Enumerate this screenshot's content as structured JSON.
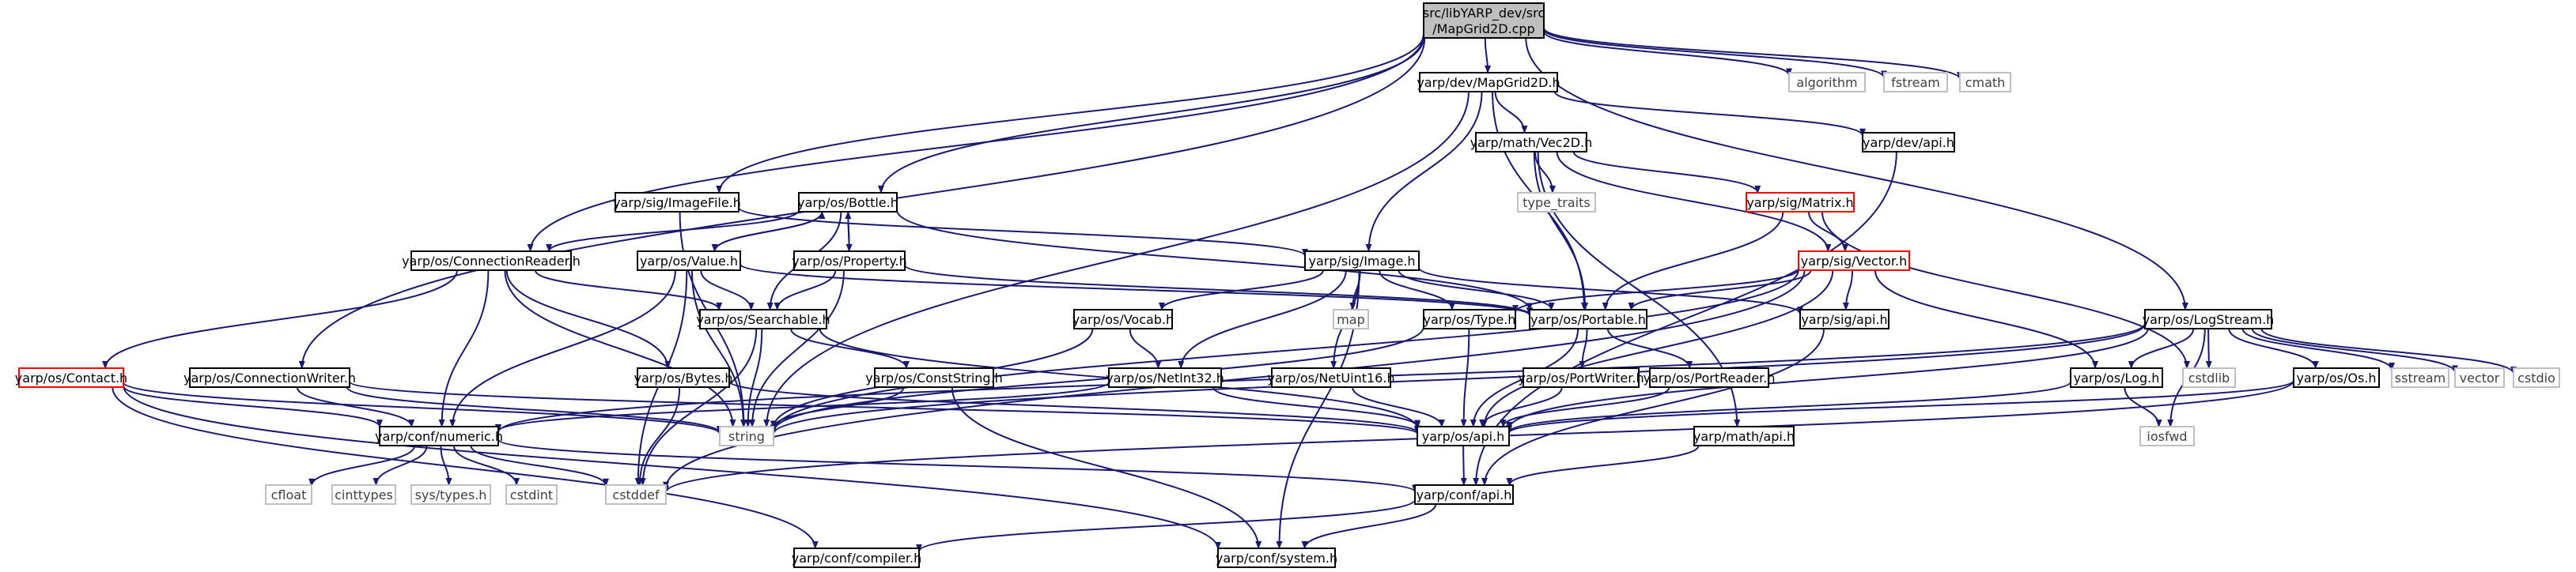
{
  "colors": {
    "edge": "#191970",
    "root_fill": "#bfbfbf",
    "root_border": "#000000",
    "normal_border": "#000000",
    "incomplete_border": "#ff0000",
    "system_border": "#bfbfbf",
    "system_text": "#404040",
    "normal_text": "#000000"
  },
  "nodes": [
    {
      "id": "root",
      "lines": [
        "src/libYARP_dev/src",
        "/MapGrid2D.cpp"
      ],
      "kind": "root"
    },
    {
      "id": "mapgrid2d",
      "lines": [
        "yarp/dev/MapGrid2D.h"
      ],
      "kind": "normal"
    },
    {
      "id": "algorithm",
      "lines": [
        "algorithm"
      ],
      "kind": "system"
    },
    {
      "id": "fstream",
      "lines": [
        "fstream"
      ],
      "kind": "system"
    },
    {
      "id": "cmath",
      "lines": [
        "cmath"
      ],
      "kind": "system"
    },
    {
      "id": "vec2d",
      "lines": [
        "yarp/math/Vec2D.h"
      ],
      "kind": "normal"
    },
    {
      "id": "devapi",
      "lines": [
        "yarp/dev/api.h"
      ],
      "kind": "normal"
    },
    {
      "id": "imagefile",
      "lines": [
        "yarp/sig/ImageFile.h"
      ],
      "kind": "normal"
    },
    {
      "id": "bottle",
      "lines": [
        "yarp/os/Bottle.h"
      ],
      "kind": "normal"
    },
    {
      "id": "type_traits",
      "lines": [
        "type_traits"
      ],
      "kind": "system"
    },
    {
      "id": "matrix",
      "lines": [
        "yarp/sig/Matrix.h"
      ],
      "kind": "incomplete"
    },
    {
      "id": "connreader",
      "lines": [
        "yarp/os/ConnectionReader.h"
      ],
      "kind": "normal"
    },
    {
      "id": "value",
      "lines": [
        "yarp/os/Value.h"
      ],
      "kind": "normal"
    },
    {
      "id": "property",
      "lines": [
        "yarp/os/Property.h"
      ],
      "kind": "normal"
    },
    {
      "id": "image",
      "lines": [
        "yarp/sig/Image.h"
      ],
      "kind": "normal"
    },
    {
      "id": "vector",
      "lines": [
        "yarp/sig/Vector.h"
      ],
      "kind": "incomplete"
    },
    {
      "id": "logstream",
      "lines": [
        "yarp/os/LogStream.h"
      ],
      "kind": "normal"
    },
    {
      "id": "searchable",
      "lines": [
        "yarp/os/Searchable.h"
      ],
      "kind": "normal"
    },
    {
      "id": "vocab",
      "lines": [
        "yarp/os/Vocab.h"
      ],
      "kind": "normal"
    },
    {
      "id": "map",
      "lines": [
        "map"
      ],
      "kind": "system"
    },
    {
      "id": "ostype",
      "lines": [
        "yarp/os/Type.h"
      ],
      "kind": "normal"
    },
    {
      "id": "portable",
      "lines": [
        "yarp/os/Portable.h"
      ],
      "kind": "normal"
    },
    {
      "id": "sigapi",
      "lines": [
        "yarp/sig/api.h"
      ],
      "kind": "normal"
    },
    {
      "id": "contact",
      "lines": [
        "yarp/os/Contact.h"
      ],
      "kind": "incomplete"
    },
    {
      "id": "connwriter",
      "lines": [
        "yarp/os/ConnectionWriter.h"
      ],
      "kind": "normal"
    },
    {
      "id": "bytes",
      "lines": [
        "yarp/os/Bytes.h"
      ],
      "kind": "normal"
    },
    {
      "id": "conststring",
      "lines": [
        "yarp/os/ConstString.h"
      ],
      "kind": "normal"
    },
    {
      "id": "netint32",
      "lines": [
        "yarp/os/NetInt32.h"
      ],
      "kind": "normal"
    },
    {
      "id": "netuint16",
      "lines": [
        "yarp/os/NetUint16.h"
      ],
      "kind": "normal"
    },
    {
      "id": "portwriter",
      "lines": [
        "yarp/os/PortWriter.h"
      ],
      "kind": "normal"
    },
    {
      "id": "portreader",
      "lines": [
        "yarp/os/PortReader.h"
      ],
      "kind": "normal"
    },
    {
      "id": "log",
      "lines": [
        "yarp/os/Log.h"
      ],
      "kind": "normal"
    },
    {
      "id": "cstdlib",
      "lines": [
        "cstdlib"
      ],
      "kind": "system"
    },
    {
      "id": "os",
      "lines": [
        "yarp/os/Os.h"
      ],
      "kind": "normal"
    },
    {
      "id": "sstream",
      "lines": [
        "sstream"
      ],
      "kind": "system"
    },
    {
      "id": "stdvector",
      "lines": [
        "vector"
      ],
      "kind": "system"
    },
    {
      "id": "cstdio",
      "lines": [
        "cstdio"
      ],
      "kind": "system"
    },
    {
      "id": "numeric",
      "lines": [
        "yarp/conf/numeric.h"
      ],
      "kind": "normal"
    },
    {
      "id": "string",
      "lines": [
        "string"
      ],
      "kind": "system"
    },
    {
      "id": "osapi",
      "lines": [
        "yarp/os/api.h"
      ],
      "kind": "normal"
    },
    {
      "id": "iosfwd",
      "lines": [
        "iosfwd"
      ],
      "kind": "system"
    },
    {
      "id": "mathapi",
      "lines": [
        "yarp/math/api.h"
      ],
      "kind": "normal"
    },
    {
      "id": "cfloat",
      "lines": [
        "cfloat"
      ],
      "kind": "system"
    },
    {
      "id": "cinttypes",
      "lines": [
        "cinttypes"
      ],
      "kind": "system"
    },
    {
      "id": "systypes",
      "lines": [
        "sys/types.h"
      ],
      "kind": "system"
    },
    {
      "id": "cstdint",
      "lines": [
        "cstdint"
      ],
      "kind": "system"
    },
    {
      "id": "cstddef",
      "lines": [
        "cstddef"
      ],
      "kind": "system"
    },
    {
      "id": "confapi",
      "lines": [
        "yarp/conf/api.h"
      ],
      "kind": "normal"
    },
    {
      "id": "compiler",
      "lines": [
        "yarp/conf/compiler.h"
      ],
      "kind": "normal"
    },
    {
      "id": "system",
      "lines": [
        "yarp/conf/system.h"
      ],
      "kind": "normal"
    }
  ],
  "edges": [
    [
      "root",
      "mapgrid2d"
    ],
    [
      "root",
      "algorithm"
    ],
    [
      "root",
      "fstream"
    ],
    [
      "root",
      "cmath"
    ],
    [
      "root",
      "imagefile"
    ],
    [
      "root",
      "bottle"
    ],
    [
      "root",
      "connreader"
    ],
    [
      "root",
      "connwriter"
    ],
    [
      "root",
      "logstream"
    ],
    [
      "mapgrid2d",
      "vec2d"
    ],
    [
      "mapgrid2d",
      "devapi"
    ],
    [
      "mapgrid2d",
      "image"
    ],
    [
      "mapgrid2d",
      "portable"
    ],
    [
      "mapgrid2d",
      "string"
    ],
    [
      "vec2d",
      "type_traits"
    ],
    [
      "vec2d",
      "matrix"
    ],
    [
      "vec2d",
      "vector"
    ],
    [
      "vec2d",
      "portable"
    ],
    [
      "vec2d",
      "mathapi"
    ],
    [
      "devapi",
      "confapi"
    ],
    [
      "imagefile",
      "image"
    ],
    [
      "imagefile",
      "string"
    ],
    [
      "bottle",
      "value"
    ],
    [
      "bottle",
      "property"
    ],
    [
      "bottle",
      "searchable"
    ],
    [
      "bottle",
      "portable"
    ],
    [
      "bottle",
      "connreader"
    ],
    [
      "matrix",
      "vector"
    ],
    [
      "matrix",
      "portable"
    ],
    [
      "matrix",
      "cstdlib"
    ],
    [
      "connreader",
      "contact"
    ],
    [
      "connreader",
      "bytes"
    ],
    [
      "connreader",
      "searchable"
    ],
    [
      "connreader",
      "numeric"
    ],
    [
      "connreader",
      "string"
    ],
    [
      "value",
      "searchable"
    ],
    [
      "value",
      "bottle"
    ],
    [
      "value",
      "string"
    ],
    [
      "value",
      "cstddef"
    ],
    [
      "value",
      "portable"
    ],
    [
      "value",
      "numeric"
    ],
    [
      "property",
      "searchable"
    ],
    [
      "property",
      "portable"
    ],
    [
      "property",
      "bottle"
    ],
    [
      "property",
      "string"
    ],
    [
      "image",
      "vocab"
    ],
    [
      "image",
      "map"
    ],
    [
      "image",
      "ostype"
    ],
    [
      "image",
      "portable"
    ],
    [
      "image",
      "sigapi"
    ],
    [
      "image",
      "netint32"
    ],
    [
      "image",
      "netuint16"
    ],
    [
      "image",
      "system"
    ],
    [
      "vector",
      "portable"
    ],
    [
      "vector",
      "ostype"
    ],
    [
      "vector",
      "sigapi"
    ],
    [
      "vector",
      "log"
    ],
    [
      "vector",
      "string"
    ],
    [
      "vector",
      "osapi"
    ],
    [
      "vector",
      "cstddef"
    ],
    [
      "logstream",
      "log"
    ],
    [
      "logstream",
      "os"
    ],
    [
      "logstream",
      "sstream"
    ],
    [
      "logstream",
      "stdvector"
    ],
    [
      "logstream",
      "cstdio"
    ],
    [
      "logstream",
      "cstdlib"
    ],
    [
      "logstream",
      "osapi"
    ],
    [
      "logstream",
      "string"
    ],
    [
      "logstream",
      "iosfwd"
    ],
    [
      "logstream",
      "numeric"
    ],
    [
      "searchable",
      "conststring"
    ],
    [
      "searchable",
      "string"
    ],
    [
      "searchable",
      "osapi"
    ],
    [
      "searchable",
      "cstddef"
    ],
    [
      "vocab",
      "netint32"
    ],
    [
      "vocab",
      "string"
    ],
    [
      "ostype",
      "osapi"
    ],
    [
      "ostype",
      "string"
    ],
    [
      "portable",
      "portwriter"
    ],
    [
      "portable",
      "portreader"
    ],
    [
      "portable",
      "osapi"
    ],
    [
      "sigapi",
      "confapi"
    ],
    [
      "contact",
      "numeric"
    ],
    [
      "contact",
      "string"
    ],
    [
      "contact",
      "compiler"
    ],
    [
      "contact",
      "system"
    ],
    [
      "connwriter",
      "numeric"
    ],
    [
      "connwriter",
      "string"
    ],
    [
      "connwriter",
      "osapi"
    ],
    [
      "bytes",
      "osapi"
    ],
    [
      "bytes",
      "cstddef"
    ],
    [
      "conststring",
      "string"
    ],
    [
      "conststring",
      "system"
    ],
    [
      "netint32",
      "osapi"
    ],
    [
      "netint32",
      "numeric"
    ],
    [
      "netuint16",
      "osapi"
    ],
    [
      "portwriter",
      "osapi"
    ],
    [
      "portreader",
      "osapi"
    ],
    [
      "log",
      "osapi"
    ],
    [
      "log",
      "iosfwd"
    ],
    [
      "os",
      "osapi"
    ],
    [
      "os",
      "cstddef"
    ],
    [
      "numeric",
      "cfloat"
    ],
    [
      "numeric",
      "cinttypes"
    ],
    [
      "numeric",
      "systypes"
    ],
    [
      "numeric",
      "cstdint"
    ],
    [
      "numeric",
      "cstddef"
    ],
    [
      "numeric",
      "confapi"
    ],
    [
      "osapi",
      "confapi"
    ],
    [
      "mathapi",
      "confapi"
    ],
    [
      "confapi",
      "compiler"
    ],
    [
      "confapi",
      "system"
    ]
  ]
}
